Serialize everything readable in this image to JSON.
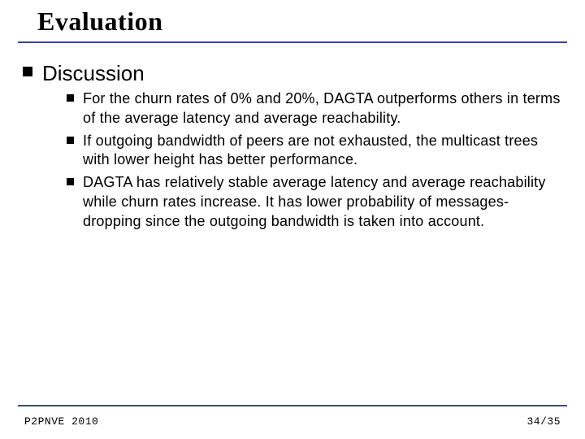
{
  "colors": {
    "rule": "#3a4b8a",
    "bullet_lvl1": "#000000",
    "bullet_lvl2": "#000000",
    "bg": "#ffffff",
    "text": "#000000"
  },
  "typography": {
    "title_font": "Times New Roman",
    "title_size_pt": 32,
    "title_weight": "bold",
    "body_font": "Arial",
    "lvl1_size_pt": 26,
    "lvl2_size_pt": 18,
    "footer_font": "Courier New",
    "footer_size_pt": 13
  },
  "title": "Evaluation",
  "section": {
    "heading": "Discussion",
    "items": [
      "For the churn rates of 0% and 20%, DAGTA outperforms others in terms of the average latency and average reachability.",
      "If outgoing bandwidth of peers are not exhausted, the multicast trees with lower height has better performance.",
      "DAGTA has relatively stable average latency and average reachability while churn rates increase. It has lower probability of messages-dropping since the outgoing bandwidth is taken into account."
    ]
  },
  "footer": {
    "left": "P2PNVE 2010",
    "right": "34/35"
  }
}
